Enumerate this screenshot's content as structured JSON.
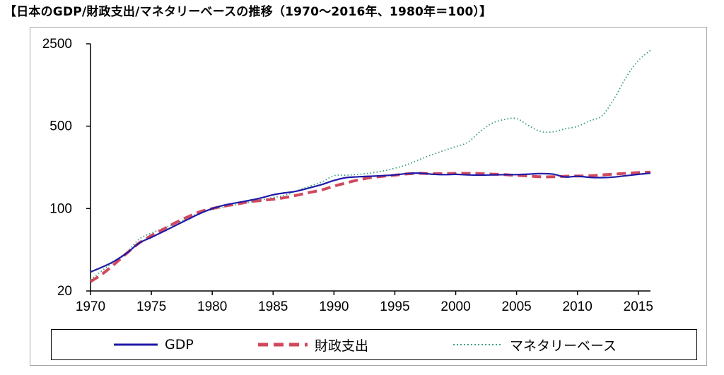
{
  "title": "【日本のGDP/財政支出/マネタリーベースの推移（1970～2016年、1980年＝100）】",
  "chart_data": {
    "type": "line",
    "title": "【日本のGDP/財政支出/マネタリーベースの推移（1970～2016年、1980年＝100）】",
    "y_scale": "log",
    "ylim": [
      20,
      2500
    ],
    "xlim": [
      1970,
      2016
    ],
    "x_ticks": [
      1970,
      1975,
      1980,
      1985,
      1990,
      1995,
      2000,
      2005,
      2010,
      2015
    ],
    "y_ticks": [
      20,
      100,
      500,
      2500
    ],
    "x_tick_labels": [
      "1970",
      "1975",
      "1980",
      "1985",
      "1990",
      "1995",
      "2000",
      "2005",
      "2010",
      "2015"
    ],
    "y_tick_labels": [
      "20",
      "100",
      "500",
      "2500"
    ],
    "legend_position": "bottom",
    "grid": false,
    "series": [
      {
        "name": "GDP",
        "color": "#1f1aa8",
        "style": "solid",
        "x": [
          1970,
          1971,
          1972,
          1973,
          1974,
          1975,
          1976,
          1977,
          1978,
          1979,
          1980,
          1981,
          1982,
          1983,
          1984,
          1985,
          1986,
          1987,
          1988,
          1989,
          1990,
          1991,
          1992,
          1993,
          1994,
          1995,
          1996,
          1997,
          1998,
          1999,
          2000,
          2001,
          2002,
          2003,
          2004,
          2005,
          2006,
          2007,
          2008,
          2009,
          2010,
          2011,
          2012,
          2013,
          2014,
          2015,
          2016
        ],
        "y": [
          29,
          32,
          36,
          42,
          51,
          57,
          64,
          72,
          81,
          91,
          100,
          107,
          112,
          117,
          123,
          131,
          136,
          141,
          150,
          160,
          173,
          183,
          186,
          188,
          190,
          193,
          198,
          200,
          196,
          194,
          195,
          193,
          192,
          193,
          194,
          194,
          196,
          198,
          196,
          185,
          188,
          184,
          183,
          185,
          190,
          195,
          200
        ]
      },
      {
        "name": "財政支出",
        "color": "#d0495d",
        "style": "dashed",
        "x": [
          1970,
          1971,
          1972,
          1973,
          1974,
          1975,
          1976,
          1977,
          1978,
          1979,
          1980,
          1981,
          1982,
          1983,
          1984,
          1985,
          1986,
          1987,
          1988,
          1989,
          1990,
          1991,
          1992,
          1993,
          1994,
          1995,
          1996,
          1997,
          1998,
          1999,
          2000,
          2001,
          2002,
          2003,
          2004,
          2005,
          2006,
          2007,
          2008,
          2009,
          2010,
          2011,
          2012,
          2013,
          2014,
          2015,
          2016
        ],
        "y": [
          24,
          28,
          34,
          42,
          51,
          59,
          67,
          76,
          85,
          94,
          100,
          105,
          109,
          114,
          117,
          120,
          124,
          130,
          137,
          144,
          155,
          165,
          175,
          183,
          188,
          192,
          197,
          199,
          198,
          198,
          199,
          199,
          198,
          196,
          194,
          191,
          189,
          186,
          186,
          188,
          189,
          190,
          193,
          196,
          199,
          202,
          204
        ]
      },
      {
        "name": "マネタリーベース",
        "color": "#3ea07a",
        "style": "dotted",
        "x": [
          1970,
          1971,
          1972,
          1973,
          1974,
          1975,
          1976,
          1977,
          1978,
          1979,
          1980,
          1981,
          1982,
          1983,
          1984,
          1985,
          1986,
          1987,
          1988,
          1989,
          1990,
          1991,
          1992,
          1993,
          1994,
          1995,
          1996,
          1997,
          1998,
          1999,
          2000,
          2001,
          2002,
          2003,
          2004,
          2005,
          2006,
          2007,
          2008,
          2009,
          2010,
          2011,
          2012,
          2013,
          2014,
          2015,
          2016
        ],
        "y": [
          25,
          30,
          36,
          43,
          55,
          62,
          68,
          75,
          83,
          92,
          98,
          103,
          108,
          113,
          118,
          124,
          130,
          142,
          155,
          168,
          190,
          192,
          195,
          200,
          208,
          220,
          236,
          260,
          285,
          310,
          335,
          365,
          450,
          530,
          570,
          580,
          505,
          450,
          448,
          475,
          498,
          555,
          610,
          850,
          1300,
          1800,
          2200
        ]
      }
    ]
  }
}
